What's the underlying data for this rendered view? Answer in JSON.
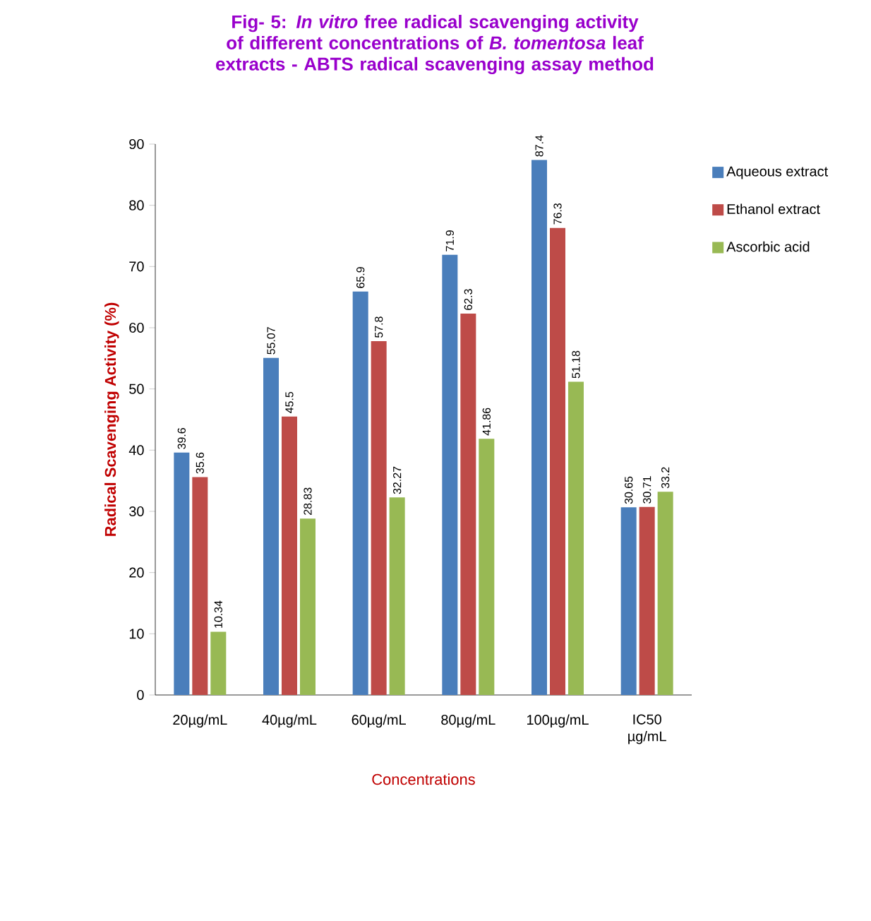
{
  "chart_data": {
    "type": "bar",
    "title": "Fig- 5: *In vitro* free radical scavenging activity of different concentrations of *B. tomentosa* leaf extracts -  ABTS radical scavenging assay method",
    "xlabel": "Concentrations",
    "ylabel": "Radical Scavenging Activity (%)",
    "categories": [
      "20µg/mL",
      "40µg/mL",
      "60µg/mL",
      "80µg/mL",
      "100µg/mL",
      "IC50 µg/mL"
    ],
    "series": [
      {
        "name": "Aqueous extract",
        "color": "#4a7ebb",
        "values": [
          39.6,
          55.07,
          65.9,
          71.9,
          87.4,
          30.65
        ]
      },
      {
        "name": "Ethanol extract",
        "color": "#be4b48",
        "values": [
          35.6,
          45.5,
          57.8,
          62.3,
          76.3,
          30.71
        ]
      },
      {
        "name": "Ascorbic acid",
        "color": "#98b954",
        "values": [
          10.34,
          28.83,
          32.27,
          41.86,
          51.18,
          33.2
        ]
      }
    ],
    "ylim": [
      0,
      90
    ],
    "yticks": [
      0,
      10,
      20,
      30,
      40,
      50,
      60,
      70,
      80,
      90
    ],
    "grid": false,
    "legend": "right",
    "data_labels": true
  }
}
